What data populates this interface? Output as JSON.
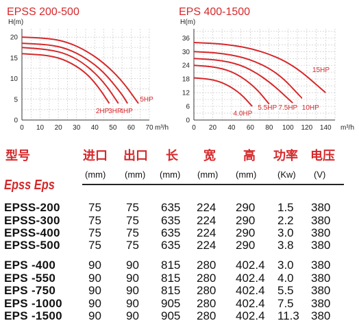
{
  "chart_data": [
    {
      "type": "line",
      "title": "EPSS 200-500",
      "ylabel": "H(m)",
      "xlabel": "m³/h",
      "xlim": [
        0,
        70
      ],
      "ylim": [
        0,
        22
      ],
      "xticks": [
        0,
        10,
        20,
        30,
        40,
        50,
        60,
        70
      ],
      "yticks": [
        0,
        5,
        10,
        15,
        20
      ],
      "grid": true,
      "series": [
        {
          "name": "2HP",
          "x": [
            0,
            15,
            25,
            35,
            42,
            48
          ],
          "y": [
            16,
            15.6,
            14.3,
            11.5,
            8.0,
            4.0
          ]
        },
        {
          "name": "3HP",
          "x": [
            0,
            15,
            25,
            35,
            45,
            53
          ],
          "y": [
            17.5,
            17.0,
            15.9,
            13.4,
            9.2,
            4.0
          ]
        },
        {
          "name": "4HP",
          "x": [
            0,
            15,
            25,
            35,
            45,
            55,
            58
          ],
          "y": [
            18.5,
            18.2,
            17.2,
            15.0,
            11.6,
            6.2,
            4.0
          ]
        },
        {
          "name": "5HP",
          "x": [
            0,
            15,
            25,
            35,
            45,
            55,
            64
          ],
          "y": [
            20,
            19.7,
            18.8,
            16.8,
            13.8,
            9.5,
            4.0
          ]
        }
      ]
    },
    {
      "type": "line",
      "title": "EPS 400-1500",
      "ylabel": "H(m)",
      "xlabel": "m³/h",
      "xlim": [
        0,
        150
      ],
      "ylim": [
        0,
        40
      ],
      "xticks": [
        0,
        20,
        40,
        60,
        80,
        100,
        120,
        140
      ],
      "yticks": [
        0,
        6,
        12,
        18,
        24,
        30,
        36
      ],
      "grid": true,
      "series": [
        {
          "name": "4.0HP",
          "x": [
            0,
            20,
            35,
            50,
            62
          ],
          "y": [
            18.5,
            17.8,
            15.6,
            11.5,
            6.0
          ]
        },
        {
          "name": "5.5HP",
          "x": [
            0,
            25,
            45,
            65,
            80
          ],
          "y": [
            24,
            23.2,
            20.5,
            14.5,
            7.0
          ]
        },
        {
          "name": "7.5HP",
          "x": [
            0,
            30,
            55,
            80,
            105
          ],
          "y": [
            27,
            26.2,
            23.5,
            17.0,
            7.5
          ]
        },
        {
          "name": "10HP",
          "x": [
            0,
            30,
            60,
            90,
            115
          ],
          "y": [
            30,
            29.3,
            26.8,
            20.5,
            9.5
          ]
        },
        {
          "name": "15HP",
          "x": [
            0,
            35,
            70,
            105,
            140
          ],
          "y": [
            34,
            33.3,
            30.6,
            24.5,
            12.0
          ]
        }
      ]
    }
  ],
  "table": {
    "headers": [
      "型号",
      "进口",
      "出口",
      "长",
      "宽",
      "高",
      "功率",
      "电压"
    ],
    "units": [
      "(mm)",
      "(mm)",
      "(mm)",
      "(mm)",
      "(mm)",
      "(Kw)",
      "(V)"
    ],
    "brand": "Epss Eps",
    "rows": [
      [
        "EPSS-200",
        "75",
        "75",
        "635",
        "224",
        "290",
        "1.5",
        "380"
      ],
      [
        "EPSS-300",
        "75",
        "75",
        "635",
        "224",
        "290",
        "2.2",
        "380"
      ],
      [
        "EPSS-400",
        "75",
        "75",
        "635",
        "224",
        "290",
        "3.0",
        "380"
      ],
      [
        "EPSS-500",
        "75",
        "75",
        "635",
        "224",
        "290",
        "3.8",
        "380"
      ],
      [
        "EPS  -400",
        "90",
        "90",
        "815",
        "280",
        "402.4",
        "3.0",
        "380"
      ],
      [
        "EPS  -550",
        "90",
        "90",
        "815",
        "280",
        "402.4",
        "4.0",
        "380"
      ],
      [
        "EPS  -750",
        "90",
        "90",
        "815",
        "280",
        "402.4",
        "5.5",
        "380"
      ],
      [
        "EPS  -1000",
        "90",
        "90",
        "905",
        "280",
        "402.4",
        "7.5",
        "380"
      ],
      [
        "EPS  -1500",
        "90",
        "90",
        "905",
        "280",
        "402.4",
        "11.3",
        "380"
      ]
    ]
  },
  "colors": {
    "accent": "#d6282b",
    "text": "#111111",
    "grid": "#c8c8c8"
  }
}
